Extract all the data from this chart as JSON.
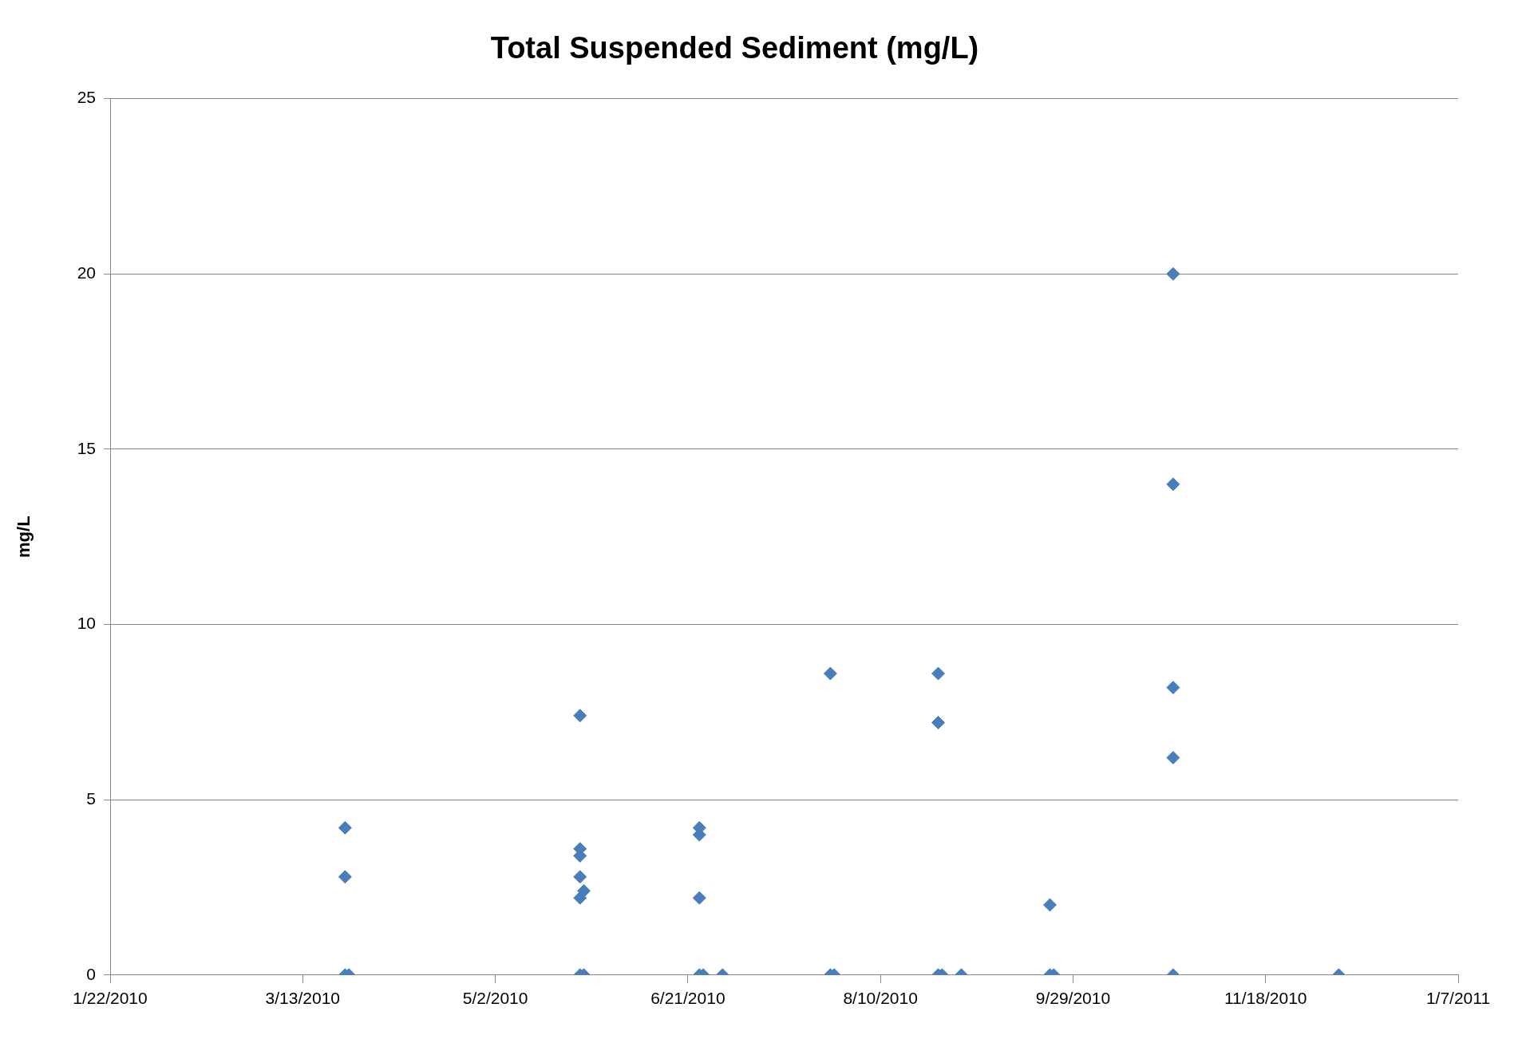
{
  "chart_data": {
    "type": "scatter",
    "title": "Total Suspended Sediment (mg/L)",
    "ylabel": "mg/L",
    "series": [
      {
        "color": "#4a7ebb",
        "x": [
          "2010-03-24",
          "2010-03-24",
          "2010-03-24",
          "2010-03-25",
          "2010-05-24",
          "2010-05-24",
          "2010-05-24",
          "2010-05-24",
          "2010-05-24",
          "2010-05-24",
          "2010-05-25",
          "2010-05-25",
          "2010-06-24",
          "2010-06-24",
          "2010-06-24",
          "2010-06-24",
          "2010-06-25",
          "2010-06-30",
          "2010-07-28",
          "2010-07-28",
          "2010-07-29",
          "2010-08-25",
          "2010-08-25",
          "2010-08-25",
          "2010-08-26",
          "2010-08-31",
          "2010-09-23",
          "2010-09-23",
          "2010-09-24",
          "2010-10-25",
          "2010-10-25",
          "2010-10-25",
          "2010-10-25",
          "2010-10-25",
          "2010-12-07"
        ],
        "values": [
          4.2,
          2.8,
          0,
          0,
          7.4,
          3.6,
          3.4,
          2.8,
          2.2,
          0,
          2.4,
          0,
          4.2,
          4.0,
          2.2,
          0,
          0,
          0,
          8.6,
          0,
          0,
          8.6,
          7.2,
          0,
          0,
          0,
          2.0,
          0,
          0,
          20,
          14,
          8.2,
          6.2,
          0,
          0
        ]
      }
    ],
    "xlim": [
      "2010-01-22",
      "2011-01-07"
    ],
    "xticks": [
      {
        "value": "2010-01-22",
        "label": "1/22/2010"
      },
      {
        "value": "2010-03-13",
        "label": "3/13/2010"
      },
      {
        "value": "2010-05-02",
        "label": "5/2/2010"
      },
      {
        "value": "2010-06-21",
        "label": "6/21/2010"
      },
      {
        "value": "2010-08-10",
        "label": "8/10/2010"
      },
      {
        "value": "2010-09-29",
        "label": "9/29/2010"
      },
      {
        "value": "2010-11-18",
        "label": "11/18/2010"
      },
      {
        "value": "2011-01-07",
        "label": "1/7/2011"
      }
    ],
    "ylim": [
      0,
      25
    ],
    "yticks": [
      0,
      5,
      10,
      15,
      20,
      25
    ],
    "grid": "y",
    "legend": false,
    "marker": "diamond"
  }
}
